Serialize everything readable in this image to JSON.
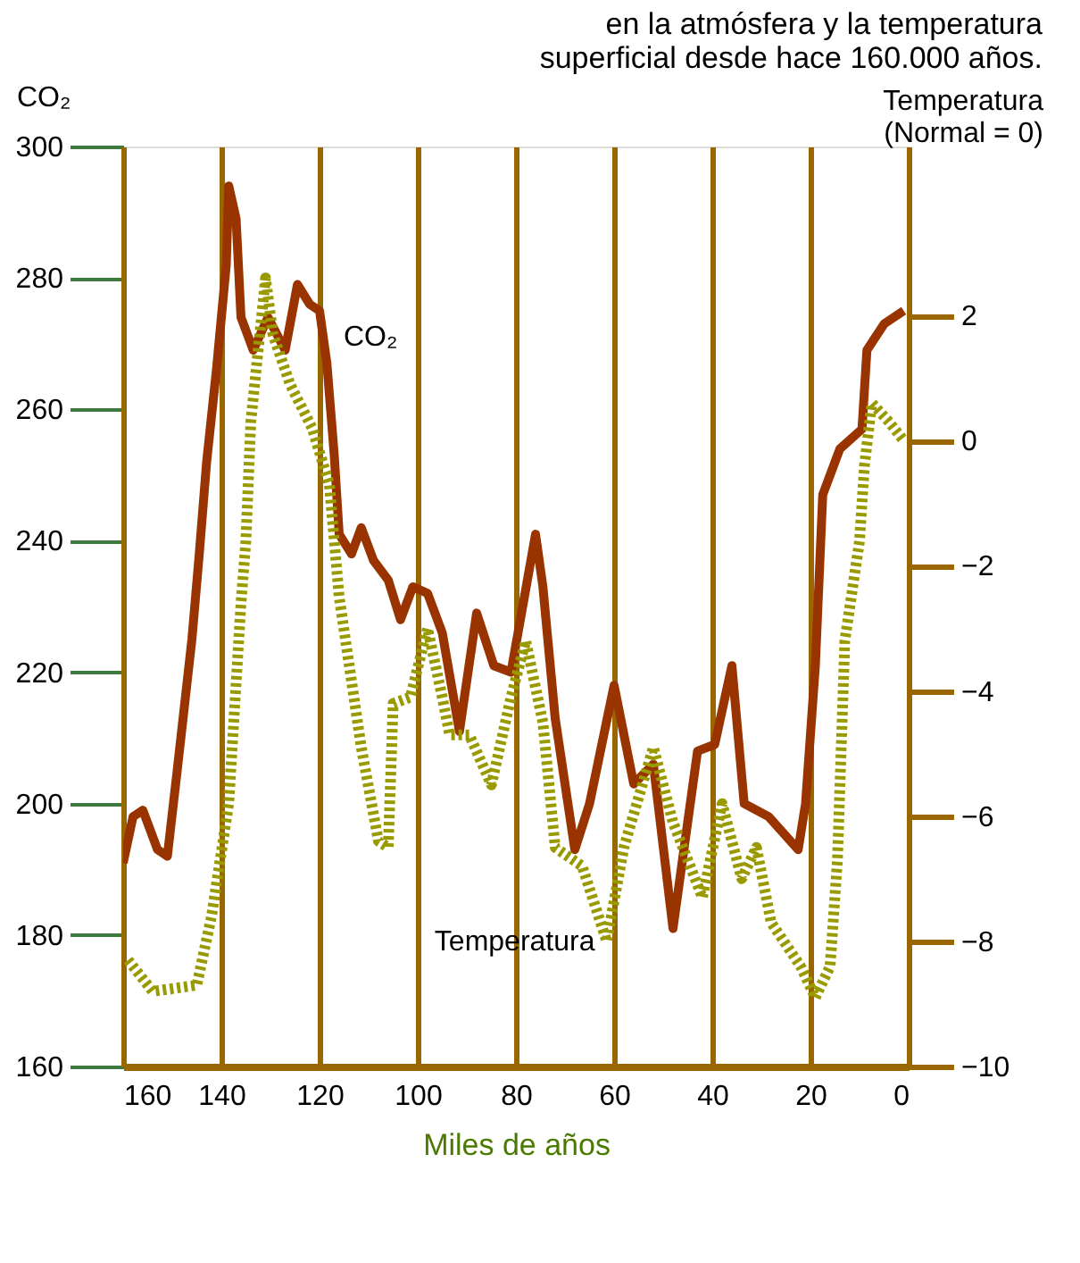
{
  "chart_data": {
    "type": "line",
    "title": [
      "en la atmósfera y la temperatura",
      "superficial desde hace 160.000 años."
    ],
    "xlabel": "Miles de años",
    "ylabel": "CO₂",
    "y2label": "Temperatura\n(Normal = 0)",
    "xlim": [
      160,
      0
    ],
    "xticks": [
      160,
      140,
      120,
      100,
      80,
      60,
      40,
      20,
      0
    ],
    "ylim": [
      160,
      300
    ],
    "yticks": [
      160,
      180,
      200,
      220,
      240,
      260,
      280,
      300
    ],
    "y2lim": [
      -10,
      4.7
    ],
    "y2ticks": [
      -10,
      -8,
      -6,
      -4,
      -2,
      0,
      2
    ],
    "grid": "x",
    "series": [
      {
        "color": "#993300",
        "line_style": "solid",
        "x": [
          160,
          158,
          156,
          153,
          151,
          149,
          146,
          144.5,
          143,
          141,
          139,
          138.5,
          137,
          136,
          133.5,
          130.5,
          127,
          124.5,
          122,
          120,
          118.5,
          117,
          116,
          113.5,
          111.5,
          109,
          106,
          103.5,
          101,
          98,
          95,
          91.5,
          88,
          84.5,
          81,
          76,
          74.5,
          72,
          68,
          65,
          60,
          56,
          52,
          48,
          43,
          39.5,
          36,
          33.5,
          28.5,
          22.5,
          21,
          19,
          17.5,
          14,
          9.5,
          8.5,
          5,
          1
        ],
        "values": [
          191,
          198,
          199,
          193,
          192,
          205,
          225,
          238,
          252,
          266,
          282,
          294,
          289,
          274,
          269,
          274,
          269,
          279,
          276,
          275,
          267,
          253,
          241,
          238,
          242,
          237,
          234,
          228,
          233,
          232,
          226,
          211,
          229,
          221,
          220,
          241,
          233,
          213,
          193,
          200,
          218,
          203,
          206,
          181,
          208,
          209,
          221,
          200,
          198,
          193,
          200,
          221,
          247,
          254,
          257,
          269,
          273,
          275
        ]
      },
      {
        "color": "#999900",
        "line_style": "dotted",
        "axis": "y2",
        "x": [
          159,
          154,
          145,
          142,
          138.5,
          136,
          135,
          134,
          131,
          129.5,
          126,
          121.5,
          118,
          116,
          111.5,
          108,
          106,
          105,
          101.5,
          98,
          95,
          93.5,
          89.5,
          85,
          81,
          78,
          74.5,
          72,
          66.5,
          61.5,
          58,
          52,
          48,
          42,
          38,
          34,
          31,
          28,
          22,
          19,
          16,
          14.5,
          13,
          10,
          9,
          7.5,
          4,
          1
        ],
        "values": [
          -8.3,
          -8.8,
          -8.7,
          -7.6,
          -5.8,
          -2.6,
          -1.6,
          0.3,
          2.6,
          1.7,
          0.9,
          0.2,
          -0.7,
          -2.5,
          -4.9,
          -6.4,
          -6.5,
          -4.2,
          -4.1,
          -3.0,
          -4.1,
          -4.7,
          -4.7,
          -5.5,
          -4.1,
          -3.2,
          -4.5,
          -6.5,
          -6.8,
          -8.0,
          -6.5,
          -4.9,
          -6.1,
          -7.3,
          -5.8,
          -7.0,
          -6.5,
          -7.7,
          -8.4,
          -8.9,
          -8.4,
          -6.7,
          -3.2,
          -1.6,
          -0.4,
          0.6,
          0.3,
          0.0
        ]
      }
    ],
    "annotations": [
      {
        "text": "CO₂",
        "x": 118,
        "y": 271
      },
      {
        "text": "Temperatura",
        "x": 61,
        "y": 179
      }
    ]
  }
}
